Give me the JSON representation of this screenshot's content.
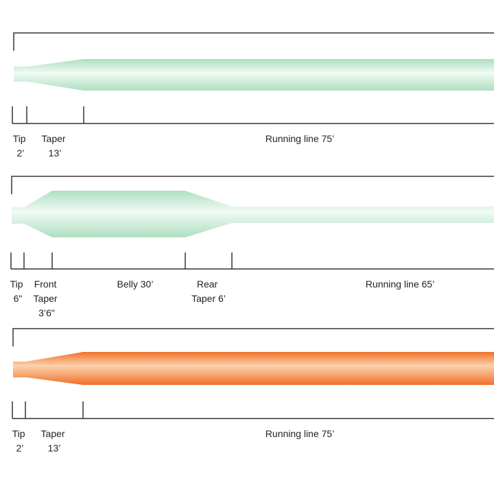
{
  "colors": {
    "green_edge": "#aedfc1",
    "green_center": "#f0fbf4",
    "orange_edge": "#f07028",
    "orange_center": "#fbd2ad",
    "frame": "#333333"
  },
  "lines": [
    {
      "id": "line-1",
      "color": "green",
      "labels": {
        "tip": [
          "Tip",
          "2’"
        ],
        "taper": [
          "Taper",
          "13’"
        ],
        "running": [
          "Running line 75’"
        ]
      }
    },
    {
      "id": "line-2",
      "color": "green",
      "labels": {
        "tip": [
          "Tip",
          "6\""
        ],
        "front_taper": [
          "Front",
          "Taper",
          "3’6\""
        ],
        "belly": [
          "Belly 30’"
        ],
        "rear_taper": [
          "Rear",
          "Taper 6’"
        ],
        "running": [
          "Running line 65’"
        ]
      }
    },
    {
      "id": "line-3",
      "color": "orange",
      "labels": {
        "tip": [
          "Tip",
          "2’"
        ],
        "taper": [
          "Taper",
          "13’"
        ],
        "running": [
          "Running line 75’"
        ]
      }
    }
  ]
}
